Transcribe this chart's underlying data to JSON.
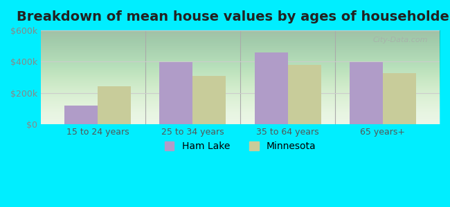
{
  "title": "Breakdown of mean house values by ages of householders",
  "categories": [
    "15 to 24 years",
    "25 to 34 years",
    "35 to 64 years",
    "65 years+"
  ],
  "ham_lake_values": [
    120000,
    395000,
    460000,
    395000
  ],
  "minnesota_values": [
    245000,
    310000,
    380000,
    325000
  ],
  "ham_lake_color": "#b09cc8",
  "minnesota_color": "#c8cc9a",
  "background_color": "#00eeff",
  "ylim": [
    0,
    600000
  ],
  "yticks": [
    0,
    200000,
    400000,
    600000
  ],
  "ytick_labels": [
    "$0",
    "$200k",
    "$400k",
    "$600k"
  ],
  "title_fontsize": 14,
  "bar_width": 0.35,
  "legend_labels": [
    "Ham Lake",
    "Minnesota"
  ],
  "watermark": "City-Data.com"
}
